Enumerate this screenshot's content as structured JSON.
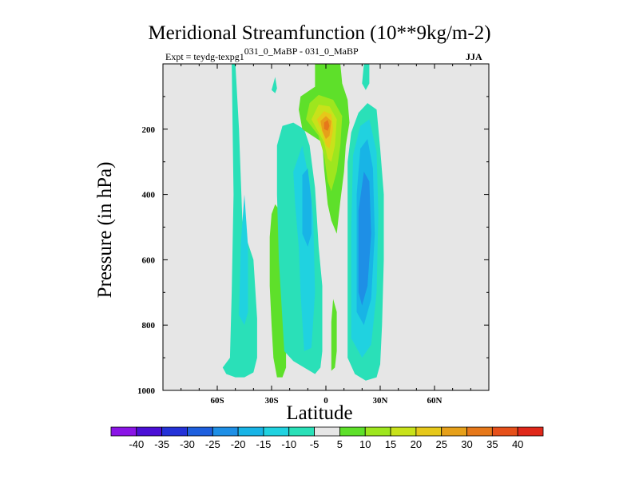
{
  "chart_data": {
    "type": "heatmap",
    "title": "Meridional Streamfunction (10**9kg/m-2)",
    "subtitle_left_main": "Expt = teydg-texpg1",
    "subtitle_left_sup": "031_0_MaBP - 031_0_MaBP",
    "subtitle_right": "JJA",
    "xlabel": "Latitude",
    "ylabel": "Pressure (in hPa)",
    "xlim": [
      -90,
      90
    ],
    "ylim": [
      1000,
      0
    ],
    "x_ticks": [
      {
        "value": -60,
        "label": "60S"
      },
      {
        "value": -30,
        "label": "30S"
      },
      {
        "value": 0,
        "label": "0"
      },
      {
        "value": 30,
        "label": "30N"
      },
      {
        "value": 60,
        "label": "60N"
      }
    ],
    "y_ticks": [
      {
        "value": 200,
        "label": "200"
      },
      {
        "value": 400,
        "label": "400"
      },
      {
        "value": 600,
        "label": "600"
      },
      {
        "value": 800,
        "label": "800"
      },
      {
        "value": 1000,
        "label": "1000"
      }
    ],
    "background_color": "#e6e6e6",
    "colorbar": {
      "labels": [
        "-40",
        "-35",
        "-30",
        "-25",
        "-20",
        "-15",
        "-10",
        "-5",
        "5",
        "10",
        "15",
        "20",
        "25",
        "30",
        "35",
        "40"
      ],
      "colors": [
        "#8a14e6",
        "#4b0fd6",
        "#2432d8",
        "#1e5fde",
        "#1e8fe6",
        "#18b4e6",
        "#20d2e0",
        "#2ae0b8",
        "#e6e6e6",
        "#5ee02a",
        "#9ee61e",
        "#c8e21a",
        "#e6c81a",
        "#e6a01a",
        "#e6781a",
        "#e6501a",
        "#e0281a"
      ]
    },
    "features": [
      {
        "name": "SH far cell (-5 to -10)",
        "level": "-10",
        "color": "#2ae0b8",
        "points": [
          [
            -57,
            930
          ],
          [
            -53,
            900
          ],
          [
            -52,
            700
          ],
          [
            -51,
            400
          ],
          [
            -52,
            0
          ],
          [
            -50,
            0
          ],
          [
            -48,
            200
          ],
          [
            -46,
            500
          ],
          [
            -40,
            600
          ],
          [
            -38,
            780
          ],
          [
            -38,
            900
          ],
          [
            -40,
            945
          ],
          [
            -45,
            960
          ],
          [
            -50,
            960
          ],
          [
            -55,
            950
          ]
        ]
      },
      {
        "name": "SH far cell core",
        "level": "-15",
        "color": "#20d2e0",
        "points": [
          [
            -48,
            770
          ],
          [
            -47,
            550
          ],
          [
            -45,
            400
          ],
          [
            -43,
            560
          ],
          [
            -43,
            760
          ],
          [
            -45,
            800
          ]
        ]
      },
      {
        "name": "SH narrow positive band (5 to 10)",
        "level": "10",
        "color": "#5ee02a",
        "points": [
          [
            -31,
            530
          ],
          [
            -30,
            460
          ],
          [
            -28,
            430
          ],
          [
            -24,
            460
          ],
          [
            -23,
            600
          ],
          [
            -22,
            800
          ],
          [
            -22,
            930
          ],
          [
            -24,
            960
          ],
          [
            -27,
            960
          ],
          [
            -29,
            900
          ],
          [
            -30,
            800
          ],
          [
            -31,
            680
          ]
        ]
      },
      {
        "name": "SH negative cell (-5 to -10)",
        "level": "-10",
        "color": "#2ae0b8",
        "points": [
          [
            -23,
            880
          ],
          [
            -26,
            600
          ],
          [
            -27,
            400
          ],
          [
            -27,
            250
          ],
          [
            -24,
            190
          ],
          [
            -18,
            180
          ],
          [
            -12,
            200
          ],
          [
            -9,
            250
          ],
          [
            -6,
            380
          ],
          [
            -4,
            560
          ],
          [
            -2,
            680
          ],
          [
            -2,
            880
          ],
          [
            -3,
            930
          ],
          [
            -6,
            950
          ],
          [
            -12,
            930
          ],
          [
            -18,
            910
          ]
        ]
      },
      {
        "name": "SH negative cell inner",
        "level": "-15",
        "color": "#20d2e0",
        "points": [
          [
            -18,
            330
          ],
          [
            -13,
            250
          ],
          [
            -9,
            360
          ],
          [
            -7,
            470
          ],
          [
            -6,
            700
          ],
          [
            -8,
            870
          ],
          [
            -12,
            880
          ],
          [
            -14,
            700
          ],
          [
            -15,
            560
          ],
          [
            -17,
            430
          ]
        ]
      },
      {
        "name": "SH negative cell core",
        "level": "-20",
        "color": "#18b4e6",
        "points": [
          [
            -13,
            340
          ],
          [
            -10,
            320
          ],
          [
            -8,
            420
          ],
          [
            -8,
            520
          ],
          [
            -10,
            560
          ],
          [
            -13,
            520
          ]
        ]
      },
      {
        "name": "NH hadley cell (-5 to -10)",
        "level": "-10",
        "color": "#2ae0b8",
        "points": [
          [
            12,
            900
          ],
          [
            12,
            600
          ],
          [
            12,
            300
          ],
          [
            14,
            210
          ],
          [
            18,
            150
          ],
          [
            23,
            120
          ],
          [
            28,
            140
          ],
          [
            30,
            260
          ],
          [
            32,
            400
          ],
          [
            32,
            600
          ],
          [
            31,
            800
          ],
          [
            30,
            920
          ],
          [
            28,
            960
          ],
          [
            22,
            970
          ],
          [
            16,
            950
          ]
        ]
      },
      {
        "name": "NH hadley cell",
        "level": "-15",
        "color": "#20d2e0",
        "points": [
          [
            14,
            840
          ],
          [
            14,
            500
          ],
          [
            15,
            280
          ],
          [
            19,
            190
          ],
          [
            24,
            170
          ],
          [
            28,
            270
          ],
          [
            29,
            460
          ],
          [
            28,
            700
          ],
          [
            25,
            860
          ],
          [
            20,
            900
          ]
        ]
      },
      {
        "name": "NH hadley cell",
        "level": "-20",
        "color": "#18b4e6",
        "points": [
          [
            17,
            760
          ],
          [
            17,
            400
          ],
          [
            19,
            260
          ],
          [
            23,
            230
          ],
          [
            26,
            320
          ],
          [
            27,
            520
          ],
          [
            25,
            720
          ],
          [
            21,
            800
          ]
        ]
      },
      {
        "name": "NH hadley cell",
        "level": "-25",
        "color": "#1e8fe6",
        "points": [
          [
            18,
            700
          ],
          [
            18,
            450
          ],
          [
            21,
            330
          ],
          [
            24,
            360
          ],
          [
            25,
            520
          ],
          [
            23,
            680
          ],
          [
            20,
            740
          ]
        ]
      },
      {
        "name": "Upper equatorial positive cell",
        "level": "5",
        "color": "#5ee02a",
        "points": [
          [
            -13,
            200
          ],
          [
            -15,
            140
          ],
          [
            -14,
            100
          ],
          [
            -10,
            85
          ],
          [
            -6,
            70
          ],
          [
            -6,
            0
          ],
          [
            8,
            0
          ],
          [
            9,
            60
          ],
          [
            12,
            110
          ],
          [
            13,
            180
          ],
          [
            11,
            250
          ],
          [
            10,
            330
          ],
          [
            8,
            420
          ],
          [
            6,
            520
          ],
          [
            3,
            480
          ],
          [
            1,
            430
          ],
          [
            -1,
            320
          ],
          [
            -2,
            240
          ]
        ]
      },
      {
        "name": "positive cell",
        "level": "10",
        "color": "#9ee61e",
        "points": [
          [
            -11,
            170
          ],
          [
            -9,
            120
          ],
          [
            -4,
            95
          ],
          [
            4,
            110
          ],
          [
            9,
            160
          ],
          [
            8,
            250
          ],
          [
            6,
            330
          ],
          [
            3,
            390
          ],
          [
            1,
            360
          ],
          [
            -1,
            280
          ],
          [
            -4,
            220
          ]
        ]
      },
      {
        "name": "positive cell",
        "level": "15",
        "color": "#c8e21a",
        "points": [
          [
            -8,
            170
          ],
          [
            -4,
            125
          ],
          [
            2,
            130
          ],
          [
            6,
            170
          ],
          [
            5,
            250
          ],
          [
            3,
            300
          ],
          [
            1,
            290
          ],
          [
            -1,
            240
          ]
        ]
      },
      {
        "name": "positive cell",
        "level": "20",
        "color": "#e6c81a",
        "points": [
          [
            -5,
            170
          ],
          [
            -1,
            145
          ],
          [
            3,
            155
          ],
          [
            4,
            200
          ],
          [
            2,
            260
          ],
          [
            0,
            250
          ],
          [
            -2,
            210
          ]
        ]
      },
      {
        "name": "positive cell",
        "level": "25",
        "color": "#e6a01a",
        "points": [
          [
            -3,
            175
          ],
          [
            0,
            160
          ],
          [
            3,
            175
          ],
          [
            2,
            220
          ],
          [
            0,
            230
          ],
          [
            -2,
            205
          ]
        ]
      },
      {
        "name": "positive cell core",
        "level": "30",
        "color": "#e6781a",
        "points": [
          [
            -1,
            180
          ],
          [
            1,
            172
          ],
          [
            2,
            190
          ],
          [
            1,
            205
          ],
          [
            -1,
            200
          ]
        ]
      },
      {
        "name": "lower equatorial positive strip",
        "level": "5",
        "color": "#5ee02a",
        "points": [
          [
            3,
            940
          ],
          [
            3,
            790
          ],
          [
            4,
            720
          ],
          [
            6,
            760
          ],
          [
            6,
            880
          ],
          [
            5,
            930
          ]
        ]
      },
      {
        "name": "NH upper small negative strip",
        "level": "-10",
        "color": "#2ae0b8",
        "points": [
          [
            20,
            60
          ],
          [
            21,
            0
          ],
          [
            24,
            0
          ],
          [
            24,
            60
          ],
          [
            22,
            80
          ]
        ]
      },
      {
        "name": "SH upper small negative patch",
        "level": "-10",
        "color": "#2ae0b8",
        "points": [
          [
            -30,
            80
          ],
          [
            -29,
            60
          ],
          [
            -28,
            40
          ],
          [
            -27,
            75
          ],
          [
            -28,
            90
          ]
        ]
      }
    ]
  }
}
